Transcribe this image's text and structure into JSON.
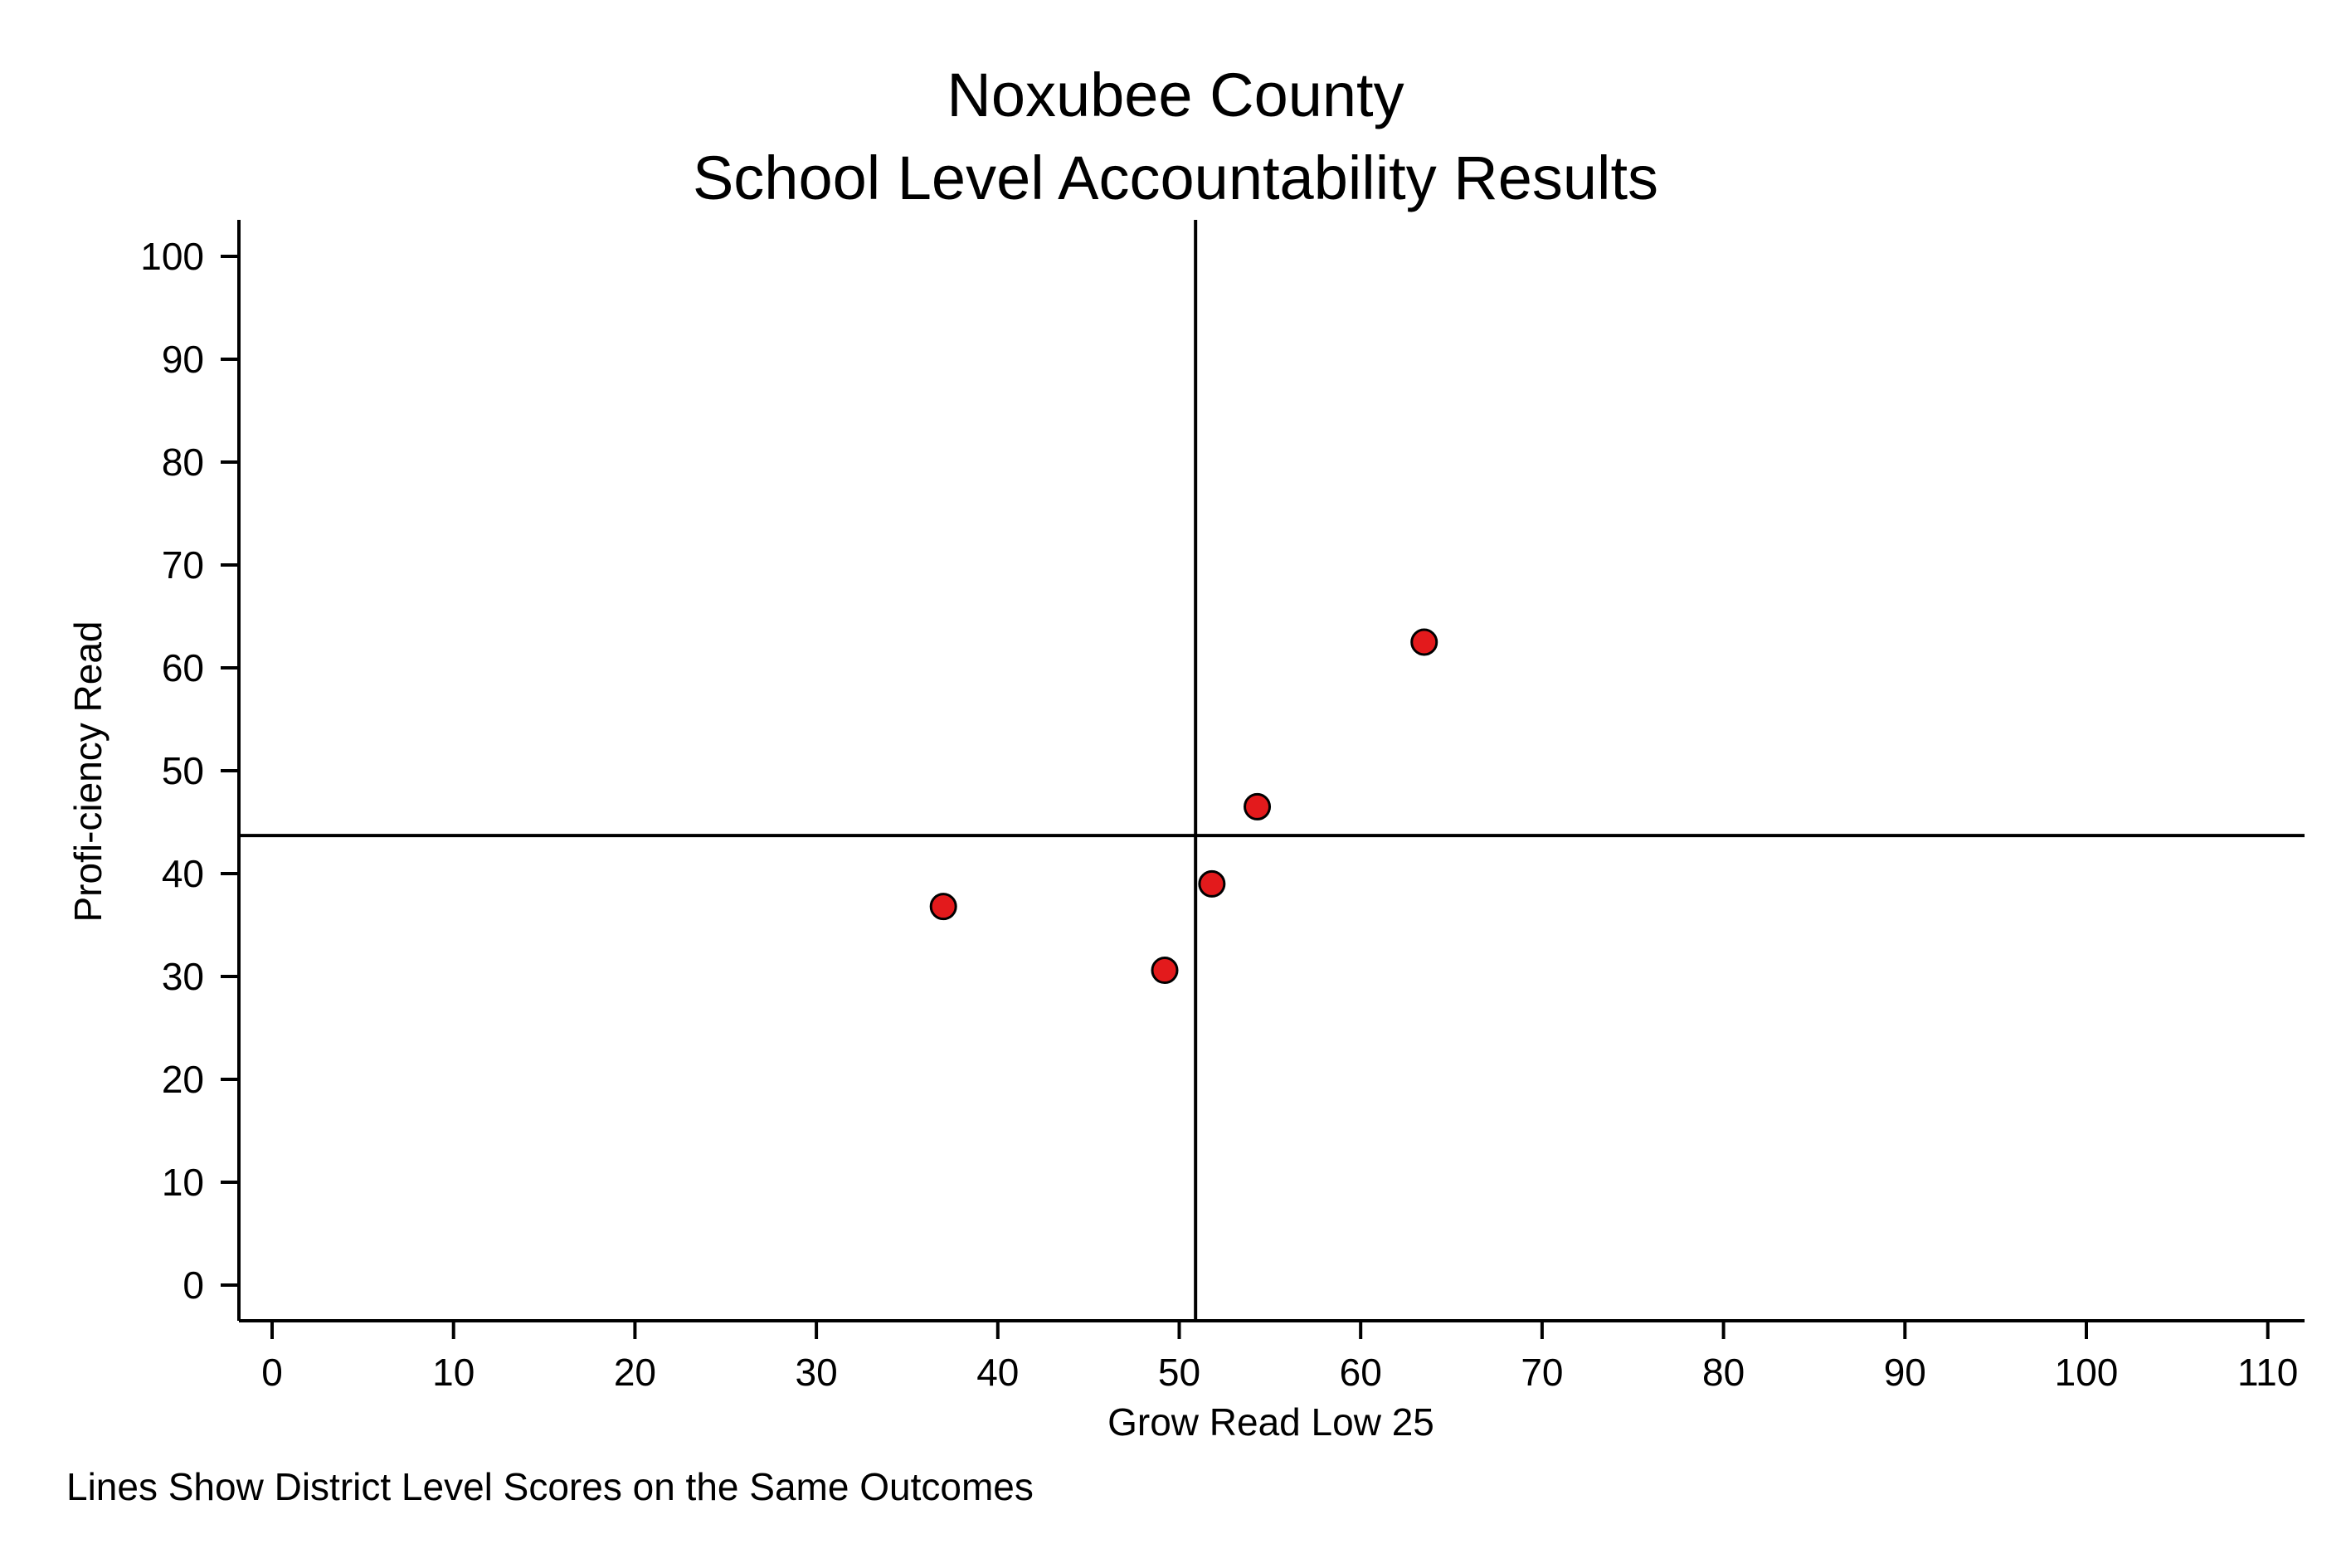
{
  "chart_data": {
    "type": "scatter",
    "title": "Noxubee County",
    "subtitle": "School Level Accountability Results",
    "xlabel": "Grow Read Low 25",
    "ylabel": "Profi-ciency Read",
    "note": "Lines Show District Level Scores on the Same Outcomes",
    "xlim": [
      -2,
      112
    ],
    "ylim": [
      -3,
      104
    ],
    "x_ticks": [
      0,
      10,
      20,
      30,
      40,
      50,
      60,
      70,
      80,
      90,
      100,
      110
    ],
    "y_ticks": [
      0,
      10,
      20,
      30,
      40,
      50,
      60,
      70,
      80,
      90,
      100
    ],
    "points": [
      {
        "x": 37.0,
        "y": 36.8
      },
      {
        "x": 49.2,
        "y": 30.6
      },
      {
        "x": 51.8,
        "y": 39.0
      },
      {
        "x": 54.3,
        "y": 46.5
      },
      {
        "x": 63.5,
        "y": 62.5
      }
    ],
    "reference_lines": {
      "x": 50.9,
      "y": 43.7
    },
    "marker_color": "#e31a1c",
    "grid": false,
    "legend": "none"
  }
}
